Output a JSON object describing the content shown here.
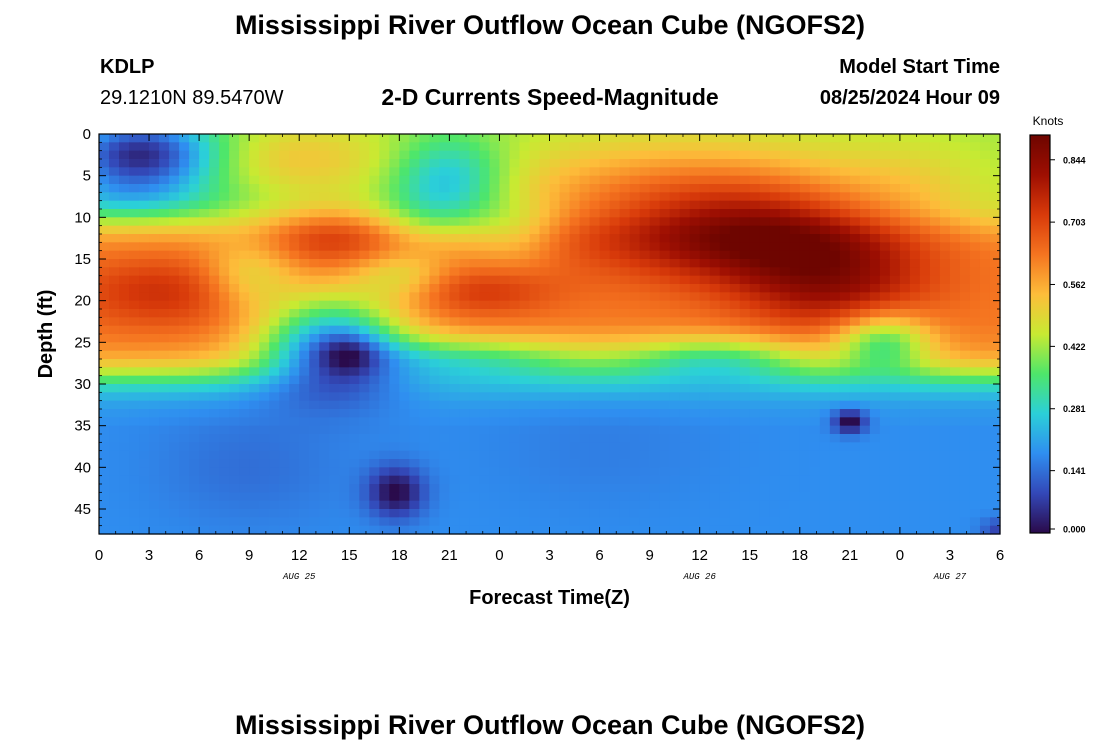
{
  "header": {
    "title": "Mississippi River Outflow Ocean Cube (NGOFS2)",
    "station_id": "KDLP",
    "coordinates": "29.1210N  89.5470W",
    "subtitle": "2-D Currents Speed-Magnitude",
    "model_start_label": "Model Start Time",
    "model_start_value": "08/25/2024 Hour 09"
  },
  "footer": {
    "title": "Mississippi River Outflow Ocean Cube (NGOFS2)"
  },
  "chart_data": {
    "type": "heatmap",
    "title": "2-D Currents Speed-Magnitude",
    "xlabel": "Forecast Time(Z)",
    "ylabel": "Depth (ft)",
    "x_tick_labels": [
      "0",
      "3",
      "6",
      "9",
      "12",
      "15",
      "18",
      "21",
      "0",
      "3",
      "6",
      "9",
      "12",
      "15",
      "18",
      "21",
      "0",
      "3",
      "6"
    ],
    "x_hours": [
      0,
      3,
      6,
      9,
      12,
      15,
      18,
      21,
      24,
      27,
      30,
      33,
      36,
      39,
      42,
      45,
      48,
      51,
      54
    ],
    "xlim": [
      0,
      54
    ],
    "date_labels": [
      {
        "text": "AUG 25",
        "x_hour": 12
      },
      {
        "text": "AUG 26",
        "x_hour": 36
      },
      {
        "text": "AUG 27",
        "x_hour": 51
      }
    ],
    "y_ticks": [
      0,
      5,
      10,
      15,
      20,
      25,
      30,
      35,
      40,
      45
    ],
    "ylim": [
      0,
      48
    ],
    "y_inverted": true,
    "colorbar": {
      "label": "Knots",
      "ticks": [
        "0.000",
        "0.141",
        "0.281",
        "0.422",
        "0.562",
        "0.703",
        "0.844"
      ],
      "range": [
        0,
        0.9
      ],
      "colors": [
        "#2a0a4a",
        "#3348b8",
        "#2f8ef0",
        "#2bd0d8",
        "#4ee66a",
        "#c8ea32",
        "#fdbd3a",
        "#f57420",
        "#d83a0a",
        "#9e0f02",
        "#6e0500"
      ]
    },
    "field": {
      "background": [
        {
          "depth_max": 11,
          "speed": 0.42
        },
        {
          "depth_max": 29,
          "speed": 0.62
        },
        {
          "depth_max": 48,
          "speed": 0.18
        }
      ],
      "features": [
        {
          "t": 2.5,
          "d": 2.5,
          "st": 3.2,
          "sd": 3.2,
          "v": -0.38
        },
        {
          "t": 1,
          "d": 8,
          "st": 5,
          "sd": 2,
          "v": -0.12
        },
        {
          "t": 21,
          "d": 5,
          "st": 2.4,
          "sd": 3.5,
          "v": -0.18
        },
        {
          "t": 20,
          "d": 10,
          "st": 2.5,
          "sd": 3,
          "v": -0.1
        },
        {
          "t": 12,
          "d": 3,
          "st": 4,
          "sd": 3,
          "v": 0.1
        },
        {
          "t": 14,
          "d": 12,
          "st": 3,
          "sd": 2.5,
          "v": 0.14
        },
        {
          "t": 23,
          "d": 19,
          "st": 3,
          "sd": 2,
          "v": 0.1
        },
        {
          "t": 4,
          "d": 19,
          "st": 4,
          "sd": 3,
          "v": 0.12
        },
        {
          "t": 35,
          "d": 8,
          "st": 8,
          "sd": 5,
          "v": 0.22
        },
        {
          "t": 40,
          "d": 12,
          "st": 5,
          "sd": 4,
          "v": 0.2
        },
        {
          "t": 44,
          "d": 18,
          "st": 4,
          "sd": 4,
          "v": 0.18
        },
        {
          "t": 49,
          "d": 6,
          "st": 3,
          "sd": 4,
          "v": 0.05
        },
        {
          "t": 9,
          "d": 17,
          "st": 2,
          "sd": 3,
          "v": -0.14
        },
        {
          "t": 18,
          "d": 17,
          "st": 2,
          "sd": 2,
          "v": -0.12
        },
        {
          "t": 25,
          "d": 12,
          "st": 2,
          "sd": 3,
          "v": -0.1
        },
        {
          "t": 14,
          "d": 25,
          "st": 3,
          "sd": 4,
          "v": -0.4
        },
        {
          "t": 21.5,
          "d": 27,
          "st": 6,
          "sd": 2,
          "v": -0.22
        },
        {
          "t": 37,
          "d": 27,
          "st": 4,
          "sd": 2,
          "v": -0.22
        },
        {
          "t": 47,
          "d": 25,
          "st": 2,
          "sd": 2.5,
          "v": -0.26
        },
        {
          "t": 15,
          "d": 26.5,
          "st": 1.2,
          "sd": 1.6,
          "v": -0.1
        },
        {
          "t": 17.8,
          "d": 43,
          "st": 1.2,
          "sd": 2.2,
          "v": -0.18
        },
        {
          "t": 45,
          "d": 34.5,
          "st": 0.7,
          "sd": 1,
          "v": -0.2
        },
        {
          "t": 54,
          "d": 47.5,
          "st": 0.8,
          "sd": 1,
          "v": -0.1
        },
        {
          "t": 9,
          "d": 40,
          "st": 4,
          "sd": 5,
          "v": -0.04
        },
        {
          "t": 30,
          "d": 38,
          "st": 5,
          "sd": 5,
          "v": -0.02
        }
      ]
    }
  }
}
